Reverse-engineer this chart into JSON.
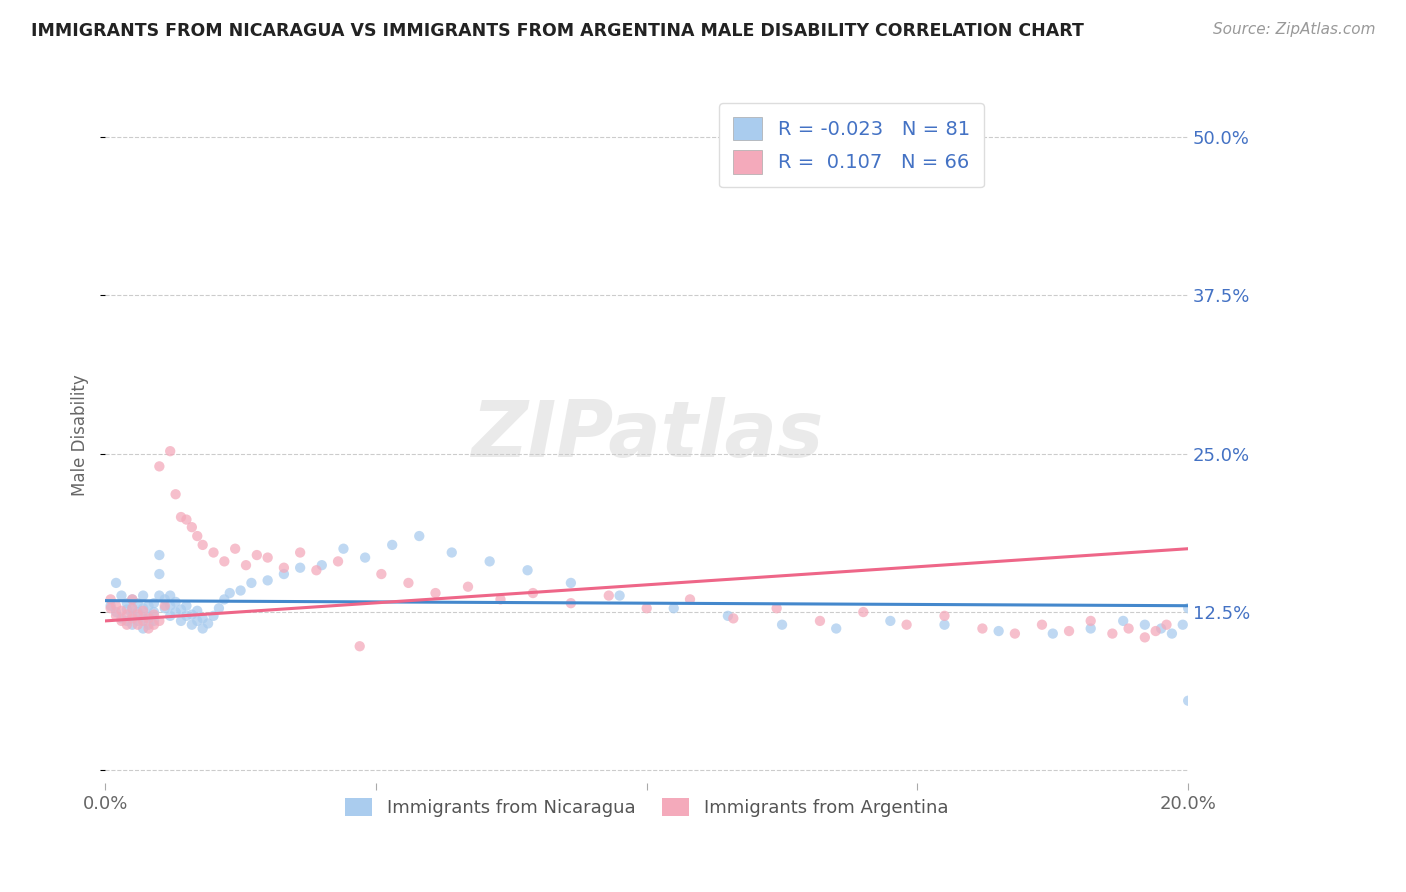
{
  "title": "IMMIGRANTS FROM NICARAGUA VS IMMIGRANTS FROM ARGENTINA MALE DISABILITY CORRELATION CHART",
  "source": "Source: ZipAtlas.com",
  "ylabel": "Male Disability",
  "x_min": 0.0,
  "x_max": 0.2,
  "y_min": -0.01,
  "y_max": 0.54,
  "y_ticks": [
    0.0,
    0.125,
    0.25,
    0.375,
    0.5
  ],
  "y_tick_labels": [
    "",
    "12.5%",
    "25.0%",
    "37.5%",
    "50.0%"
  ],
  "x_ticks": [
    0.0,
    0.05,
    0.1,
    0.15,
    0.2
  ],
  "x_tick_labels": [
    "0.0%",
    "",
    "",
    "",
    "20.0%"
  ],
  "color_nicaragua": "#aaccee",
  "color_argentina": "#f4aabb",
  "line_color_nicaragua": "#4488cc",
  "line_color_argentina": "#ee6688",
  "R_nicaragua": -0.023,
  "N_nicaragua": 81,
  "R_argentina": 0.107,
  "N_argentina": 66,
  "watermark": "ZIPatlas",
  "background_color": "#ffffff",
  "grid_color": "#cccccc",
  "title_color": "#222222",
  "legend_text_color": "#4472c4",
  "scatter_alpha": 0.75,
  "scatter_size": 55,
  "nicaragua_x": [
    0.001,
    0.002,
    0.002,
    0.003,
    0.003,
    0.004,
    0.004,
    0.004,
    0.005,
    0.005,
    0.005,
    0.005,
    0.006,
    0.006,
    0.006,
    0.007,
    0.007,
    0.007,
    0.007,
    0.008,
    0.008,
    0.008,
    0.009,
    0.009,
    0.009,
    0.01,
    0.01,
    0.01,
    0.011,
    0.011,
    0.012,
    0.012,
    0.012,
    0.013,
    0.013,
    0.014,
    0.014,
    0.015,
    0.015,
    0.016,
    0.016,
    0.017,
    0.017,
    0.018,
    0.018,
    0.019,
    0.02,
    0.021,
    0.022,
    0.023,
    0.025,
    0.027,
    0.03,
    0.033,
    0.036,
    0.04,
    0.044,
    0.048,
    0.053,
    0.058,
    0.064,
    0.071,
    0.078,
    0.086,
    0.095,
    0.105,
    0.115,
    0.125,
    0.135,
    0.145,
    0.155,
    0.165,
    0.175,
    0.182,
    0.188,
    0.192,
    0.195,
    0.197,
    0.199,
    0.2,
    0.2
  ],
  "nicaragua_y": [
    0.13,
    0.148,
    0.125,
    0.138,
    0.12,
    0.127,
    0.132,
    0.118,
    0.135,
    0.122,
    0.128,
    0.115,
    0.132,
    0.118,
    0.125,
    0.138,
    0.112,
    0.12,
    0.128,
    0.115,
    0.122,
    0.13,
    0.118,
    0.125,
    0.132,
    0.17,
    0.155,
    0.138,
    0.128,
    0.135,
    0.122,
    0.13,
    0.138,
    0.125,
    0.133,
    0.118,
    0.127,
    0.122,
    0.13,
    0.115,
    0.123,
    0.118,
    0.126,
    0.112,
    0.12,
    0.116,
    0.122,
    0.128,
    0.135,
    0.14,
    0.142,
    0.148,
    0.15,
    0.155,
    0.16,
    0.162,
    0.175,
    0.168,
    0.178,
    0.185,
    0.172,
    0.165,
    0.158,
    0.148,
    0.138,
    0.128,
    0.122,
    0.115,
    0.112,
    0.118,
    0.115,
    0.11,
    0.108,
    0.112,
    0.118,
    0.115,
    0.112,
    0.108,
    0.115,
    0.128,
    0.055
  ],
  "argentina_x": [
    0.001,
    0.001,
    0.002,
    0.002,
    0.003,
    0.003,
    0.004,
    0.004,
    0.005,
    0.005,
    0.005,
    0.006,
    0.006,
    0.007,
    0.007,
    0.008,
    0.008,
    0.009,
    0.009,
    0.01,
    0.01,
    0.011,
    0.012,
    0.013,
    0.014,
    0.015,
    0.016,
    0.017,
    0.018,
    0.02,
    0.022,
    0.024,
    0.026,
    0.028,
    0.03,
    0.033,
    0.036,
    0.039,
    0.043,
    0.047,
    0.051,
    0.056,
    0.061,
    0.067,
    0.073,
    0.079,
    0.086,
    0.093,
    0.1,
    0.108,
    0.116,
    0.124,
    0.132,
    0.14,
    0.148,
    0.155,
    0.162,
    0.168,
    0.173,
    0.178,
    0.182,
    0.186,
    0.189,
    0.192,
    0.194,
    0.196
  ],
  "argentina_y": [
    0.128,
    0.135,
    0.122,
    0.13,
    0.118,
    0.126,
    0.115,
    0.123,
    0.12,
    0.128,
    0.135,
    0.115,
    0.123,
    0.118,
    0.126,
    0.112,
    0.12,
    0.115,
    0.123,
    0.24,
    0.118,
    0.13,
    0.252,
    0.218,
    0.2,
    0.198,
    0.192,
    0.185,
    0.178,
    0.172,
    0.165,
    0.175,
    0.162,
    0.17,
    0.168,
    0.16,
    0.172,
    0.158,
    0.165,
    0.098,
    0.155,
    0.148,
    0.14,
    0.145,
    0.135,
    0.14,
    0.132,
    0.138,
    0.128,
    0.135,
    0.12,
    0.128,
    0.118,
    0.125,
    0.115,
    0.122,
    0.112,
    0.108,
    0.115,
    0.11,
    0.118,
    0.108,
    0.112,
    0.105,
    0.11,
    0.115
  ],
  "nic_line_x0": 0.0,
  "nic_line_x1": 0.2,
  "nic_line_y0": 0.134,
  "nic_line_y1": 0.13,
  "arg_line_x0": 0.0,
  "arg_line_x1": 0.2,
  "arg_line_y0": 0.118,
  "arg_line_y1": 0.175
}
